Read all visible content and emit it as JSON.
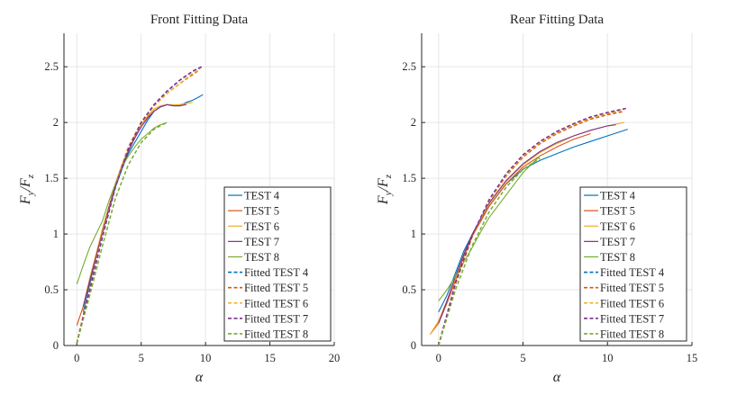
{
  "chart_data": [
    {
      "type": "line",
      "title": "Front Fitting Data",
      "xlabel": "α",
      "ylabel": "F_y / F_z",
      "ylabel_main": "F",
      "ylabel_sub_num": "y",
      "ylabel_sep": "/",
      "ylabel_den": "F",
      "ylabel_sub_den": "z",
      "xlim": [
        -1,
        20
      ],
      "ylim": [
        0,
        2.8
      ],
      "xticks": [
        0,
        5,
        10,
        15,
        20
      ],
      "xtick_labels": [
        "0",
        "5",
        "10",
        "15",
        "20"
      ],
      "yticks": [
        0,
        0.5,
        1,
        1.5,
        2,
        2.5
      ],
      "ytick_labels": [
        "0",
        "0.5",
        "1",
        "1.5",
        "2",
        "2.5"
      ],
      "legend": "bottom-right",
      "series": [
        {
          "name": "TEST 4",
          "color": "#0072BD",
          "style": "solid",
          "x": [
            0.5,
            1.0,
            1.5,
            2.0,
            2.5,
            3.0,
            3.5,
            4.0,
            4.5,
            5.0,
            5.5,
            6.0,
            6.5,
            7.0,
            7.5,
            8.0,
            8.5,
            9.0,
            9.5,
            9.8
          ],
          "y": [
            0.3,
            0.55,
            0.8,
            1.02,
            1.22,
            1.42,
            1.58,
            1.72,
            1.82,
            1.92,
            2.02,
            2.1,
            2.14,
            2.16,
            2.15,
            2.15,
            2.18,
            2.2,
            2.23,
            2.25
          ]
        },
        {
          "name": "TEST 5",
          "color": "#D95319",
          "style": "solid",
          "x": [
            0.0,
            0.5,
            1.0,
            1.5,
            2.0,
            2.5,
            3.0,
            3.5,
            4.0,
            4.5,
            5.0,
            5.5,
            6.0,
            6.5,
            7.0,
            7.5,
            8.0,
            8.5
          ],
          "y": [
            0.18,
            0.35,
            0.6,
            0.82,
            1.05,
            1.25,
            1.45,
            1.62,
            1.75,
            1.88,
            1.98,
            2.05,
            2.12,
            2.15,
            2.16,
            2.15,
            2.16,
            2.17
          ]
        },
        {
          "name": "TEST 6",
          "color": "#EDB120",
          "style": "solid",
          "x": [
            0.5,
            1.0,
            1.5,
            2.0,
            2.5,
            3.0,
            3.5,
            4.0,
            4.5,
            5.0,
            5.5,
            6.0,
            6.5,
            7.0,
            7.5,
            8.0,
            8.5,
            9.0
          ],
          "y": [
            0.35,
            0.6,
            0.82,
            1.05,
            1.25,
            1.45,
            1.62,
            1.75,
            1.88,
            1.98,
            2.06,
            2.12,
            2.15,
            2.16,
            2.16,
            2.16,
            2.17,
            2.18
          ]
        },
        {
          "name": "TEST 7",
          "color": "#7E2F8E",
          "style": "solid",
          "x": [
            0.5,
            1.0,
            1.5,
            2.0,
            2.5,
            3.0,
            3.5,
            4.0,
            4.5,
            5.0,
            5.5,
            6.0,
            6.5,
            7.0,
            7.5,
            8.0,
            8.5
          ],
          "y": [
            0.35,
            0.58,
            0.8,
            1.02,
            1.24,
            1.44,
            1.6,
            1.74,
            1.86,
            1.96,
            2.04,
            2.1,
            2.14,
            2.16,
            2.15,
            2.15,
            2.16
          ]
        },
        {
          "name": "TEST 8",
          "color": "#77AC30",
          "style": "solid",
          "x": [
            0.0,
            0.5,
            1.0,
            1.5,
            2.0,
            2.5,
            3.0,
            3.5,
            4.0,
            4.5,
            5.0,
            5.5,
            6.0,
            6.5,
            7.0
          ],
          "y": [
            0.55,
            0.72,
            0.88,
            1.0,
            1.12,
            1.3,
            1.45,
            1.6,
            1.7,
            1.78,
            1.85,
            1.9,
            1.95,
            1.98,
            2.0
          ]
        },
        {
          "name": "Fitted TEST 4",
          "color": "#0072BD",
          "style": "dashed",
          "x": [
            0.0,
            1.0,
            2.0,
            3.0,
            4.0,
            5.0,
            6.0,
            7.0,
            8.0,
            9.0,
            9.7
          ],
          "y": [
            0.02,
            0.5,
            0.98,
            1.42,
            1.76,
            2.0,
            2.16,
            2.28,
            2.38,
            2.46,
            2.5
          ]
        },
        {
          "name": "Fitted TEST 5",
          "color": "#D95319",
          "style": "dashed",
          "x": [
            0.0,
            1.0,
            2.0,
            3.0,
            4.0,
            5.0,
            6.0,
            7.0,
            8.0,
            9.0,
            9.5
          ],
          "y": [
            0.02,
            0.52,
            1.0,
            1.44,
            1.78,
            2.0,
            2.15,
            2.26,
            2.35,
            2.43,
            2.47
          ]
        },
        {
          "name": "Fitted TEST 6",
          "color": "#EDB120",
          "style": "dashed",
          "x": [
            0.0,
            1.0,
            2.0,
            3.0,
            4.0,
            5.0,
            6.0,
            7.0,
            8.0,
            9.0,
            9.6
          ],
          "y": [
            0.02,
            0.51,
            0.99,
            1.43,
            1.77,
            2.0,
            2.15,
            2.26,
            2.35,
            2.44,
            2.48
          ]
        },
        {
          "name": "Fitted TEST 7",
          "color": "#7E2F8E",
          "style": "dashed",
          "x": [
            0.0,
            1.0,
            2.0,
            3.0,
            4.0,
            5.0,
            6.0,
            7.0,
            8.0,
            9.0,
            9.7
          ],
          "y": [
            0.02,
            0.5,
            0.98,
            1.42,
            1.76,
            2.0,
            2.16,
            2.28,
            2.38,
            2.46,
            2.5
          ]
        },
        {
          "name": "Fitted TEST 8",
          "color": "#77AC30",
          "style": "dashed",
          "x": [
            0.0,
            1.0,
            2.0,
            3.0,
            4.0,
            5.0,
            6.0,
            7.0
          ],
          "y": [
            0.02,
            0.45,
            0.9,
            1.32,
            1.62,
            1.82,
            1.94,
            2.0
          ]
        }
      ]
    },
    {
      "type": "line",
      "title": "Rear Fitting Data",
      "xlabel": "α",
      "ylabel": "F_y / F_z",
      "ylabel_main": "F",
      "ylabel_sub_num": "y",
      "ylabel_sep": "/",
      "ylabel_den": "F",
      "ylabel_sub_den": "z",
      "xlim": [
        -1,
        15
      ],
      "ylim": [
        0,
        2.8
      ],
      "xticks": [
        0,
        5,
        10,
        15
      ],
      "xtick_labels": [
        "0",
        "5",
        "10",
        "15"
      ],
      "yticks": [
        0,
        0.5,
        1,
        1.5,
        2,
        2.5
      ],
      "ytick_labels": [
        "0",
        "0.5",
        "1",
        "1.5",
        "2",
        "2.5"
      ],
      "legend": "bottom-right",
      "series": [
        {
          "name": "TEST 4",
          "color": "#0072BD",
          "style": "solid",
          "x": [
            0.0,
            0.5,
            1.0,
            1.5,
            2.0,
            3.0,
            4.0,
            5.0,
            6.0,
            7.0,
            8.0,
            9.0,
            10.0,
            11.2
          ],
          "y": [
            0.3,
            0.45,
            0.65,
            0.85,
            1.0,
            1.25,
            1.45,
            1.58,
            1.66,
            1.72,
            1.78,
            1.83,
            1.88,
            1.94
          ]
        },
        {
          "name": "TEST 5",
          "color": "#D95319",
          "style": "solid",
          "x": [
            -0.5,
            0.0,
            0.5,
            1.0,
            1.5,
            2.0,
            3.0,
            4.0,
            5.0,
            6.0,
            7.0,
            8.0,
            9.0
          ],
          "y": [
            0.1,
            0.2,
            0.38,
            0.58,
            0.8,
            0.98,
            1.25,
            1.45,
            1.6,
            1.7,
            1.78,
            1.85,
            1.9
          ]
        },
        {
          "name": "TEST 6",
          "color": "#EDB120",
          "style": "solid",
          "x": [
            -0.5,
            0.0,
            0.5,
            1.0,
            1.5,
            2.0,
            3.0,
            4.0,
            5.0,
            6.0,
            7.0,
            8.0,
            9.0,
            10.0,
            11.0
          ],
          "y": [
            0.1,
            0.22,
            0.4,
            0.6,
            0.82,
            1.0,
            1.27,
            1.47,
            1.62,
            1.73,
            1.81,
            1.88,
            1.93,
            1.97,
            2.0
          ]
        },
        {
          "name": "TEST 7",
          "color": "#7E2F8E",
          "style": "solid",
          "x": [
            0.0,
            0.5,
            1.0,
            1.5,
            2.0,
            3.0,
            4.0,
            5.0,
            6.0,
            7.0,
            8.0,
            9.0,
            10.0,
            10.5
          ],
          "y": [
            0.2,
            0.4,
            0.62,
            0.82,
            1.0,
            1.28,
            1.48,
            1.63,
            1.74,
            1.82,
            1.88,
            1.93,
            1.97,
            1.98
          ]
        },
        {
          "name": "TEST 8",
          "color": "#77AC30",
          "style": "solid",
          "x": [
            0.0,
            0.5,
            1.0,
            1.5,
            2.0,
            2.5,
            3.0,
            4.0,
            5.0,
            6.0
          ],
          "y": [
            0.4,
            0.5,
            0.62,
            0.75,
            0.88,
            1.02,
            1.15,
            1.35,
            1.55,
            1.7
          ]
        },
        {
          "name": "Fitted TEST 4",
          "color": "#0072BD",
          "style": "dashed",
          "x": [
            0.0,
            1.0,
            2.0,
            3.0,
            4.0,
            5.0,
            6.0,
            7.0,
            8.0,
            9.0,
            10.0,
            11.0
          ],
          "y": [
            0.0,
            0.55,
            0.98,
            1.3,
            1.53,
            1.7,
            1.82,
            1.91,
            1.98,
            2.04,
            2.08,
            2.12
          ]
        },
        {
          "name": "Fitted TEST 5",
          "color": "#D95319",
          "style": "dashed",
          "x": [
            0.0,
            1.0,
            2.0,
            3.0,
            4.0,
            5.0,
            6.0,
            7.0,
            8.0,
            9.0,
            10.0,
            11.0
          ],
          "y": [
            0.0,
            0.55,
            0.98,
            1.3,
            1.52,
            1.69,
            1.81,
            1.9,
            1.97,
            2.03,
            2.07,
            2.1
          ]
        },
        {
          "name": "Fitted TEST 6",
          "color": "#EDB120",
          "style": "dashed",
          "x": [
            0.0,
            1.0,
            2.0,
            3.0,
            4.0,
            5.0,
            6.0,
            7.0,
            8.0,
            9.0,
            10.0,
            11.0
          ],
          "y": [
            0.0,
            0.55,
            0.98,
            1.3,
            1.53,
            1.7,
            1.82,
            1.91,
            1.98,
            2.04,
            2.08,
            2.12
          ]
        },
        {
          "name": "Fitted TEST 7",
          "color": "#7E2F8E",
          "style": "dashed",
          "x": [
            0.0,
            1.0,
            2.0,
            3.0,
            4.0,
            5.0,
            6.0,
            7.0,
            8.0,
            9.0,
            10.0,
            11.2
          ],
          "y": [
            0.0,
            0.56,
            0.99,
            1.31,
            1.54,
            1.71,
            1.83,
            1.92,
            1.99,
            2.05,
            2.09,
            2.13
          ]
        },
        {
          "name": "Fitted TEST 8",
          "color": "#77AC30",
          "style": "dashed",
          "x": [
            0.0,
            1.0,
            2.0,
            3.0,
            4.0,
            5.0,
            6.0
          ],
          "y": [
            0.0,
            0.5,
            0.9,
            1.2,
            1.42,
            1.58,
            1.68
          ]
        }
      ]
    }
  ]
}
